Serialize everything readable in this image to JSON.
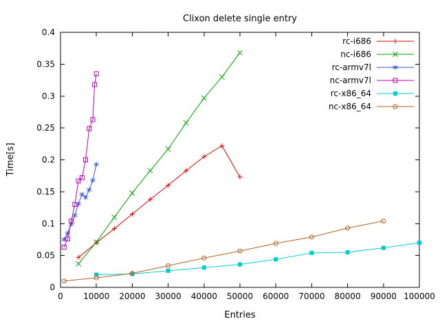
{
  "chart_data": {
    "type": "line",
    "title": "Clixon delete single entry",
    "xlabel": "Entries",
    "ylabel": "Time[s]",
    "xlim": [
      0,
      100000
    ],
    "ylim": [
      0,
      0.4
    ],
    "grid": false,
    "legend_position": "top-right-inside",
    "x_ticks": [
      0,
      10000,
      20000,
      30000,
      40000,
      50000,
      60000,
      70000,
      80000,
      90000,
      100000
    ],
    "x_tick_labels": [
      "0",
      "10000",
      "20000",
      "30000",
      "40000",
      "50000",
      "60000",
      "70000",
      "80000",
      "90000",
      "100000"
    ],
    "y_ticks": [
      0,
      0.05,
      0.1,
      0.15,
      0.2,
      0.25,
      0.3,
      0.35,
      0.4
    ],
    "y_tick_labels": [
      "0",
      "0.05",
      "0.1",
      "0.15",
      "0.2",
      "0.25",
      "0.3",
      "0.35",
      "0.4"
    ],
    "axis_color": "#000000",
    "series": [
      {
        "name": "rc-i686",
        "color": "#dd0000",
        "marker": "plus",
        "x": [
          5000,
          10000,
          15000,
          20000,
          25000,
          30000,
          35000,
          40000,
          45000,
          50000
        ],
        "y": [
          0.047,
          0.07,
          0.092,
          0.115,
          0.138,
          0.16,
          0.183,
          0.205,
          0.222,
          0.173
        ]
      },
      {
        "name": "nc-i686",
        "color": "#00a000",
        "marker": "cross",
        "x": [
          5000,
          10000,
          15000,
          20000,
          25000,
          30000,
          35000,
          40000,
          45000,
          50000
        ],
        "y": [
          0.037,
          0.071,
          0.11,
          0.148,
          0.183,
          0.217,
          0.258,
          0.297,
          0.33,
          0.368
        ]
      },
      {
        "name": "rc-armv7l",
        "color": "#3355dd",
        "marker": "asterisk",
        "x": [
          1000,
          2000,
          3000,
          4000,
          5000,
          6000,
          7000,
          8000,
          9000,
          10000
        ],
        "y": [
          0.075,
          0.085,
          0.099,
          0.113,
          0.131,
          0.146,
          0.141,
          0.153,
          0.168,
          0.193
        ]
      },
      {
        "name": "nc-armv7l",
        "color": "#bb00bb",
        "marker": "square-open",
        "x": [
          1000,
          2000,
          3000,
          4000,
          5000,
          6000,
          7000,
          8000,
          9000,
          9500,
          10000
        ],
        "y": [
          0.063,
          0.076,
          0.104,
          0.13,
          0.167,
          0.172,
          0.2,
          0.249,
          0.263,
          0.318,
          0.335
        ]
      },
      {
        "name": "rc-x86_64",
        "color": "#00cccc",
        "marker": "square-filled",
        "x": [
          10000,
          20000,
          30000,
          40000,
          50000,
          60000,
          70000,
          80000,
          90000,
          100000
        ],
        "y": [
          0.02,
          0.021,
          0.026,
          0.031,
          0.036,
          0.044,
          0.054,
          0.055,
          0.062,
          0.07
        ]
      },
      {
        "name": "nc-x86_64",
        "color": "#b06020",
        "marker": "circle-open",
        "x": [
          1000,
          10000,
          20000,
          30000,
          40000,
          50000,
          60000,
          70000,
          80000,
          90000
        ],
        "y": [
          0.01,
          0.015,
          0.022,
          0.034,
          0.046,
          0.057,
          0.069,
          0.079,
          0.093,
          0.104
        ]
      }
    ]
  }
}
